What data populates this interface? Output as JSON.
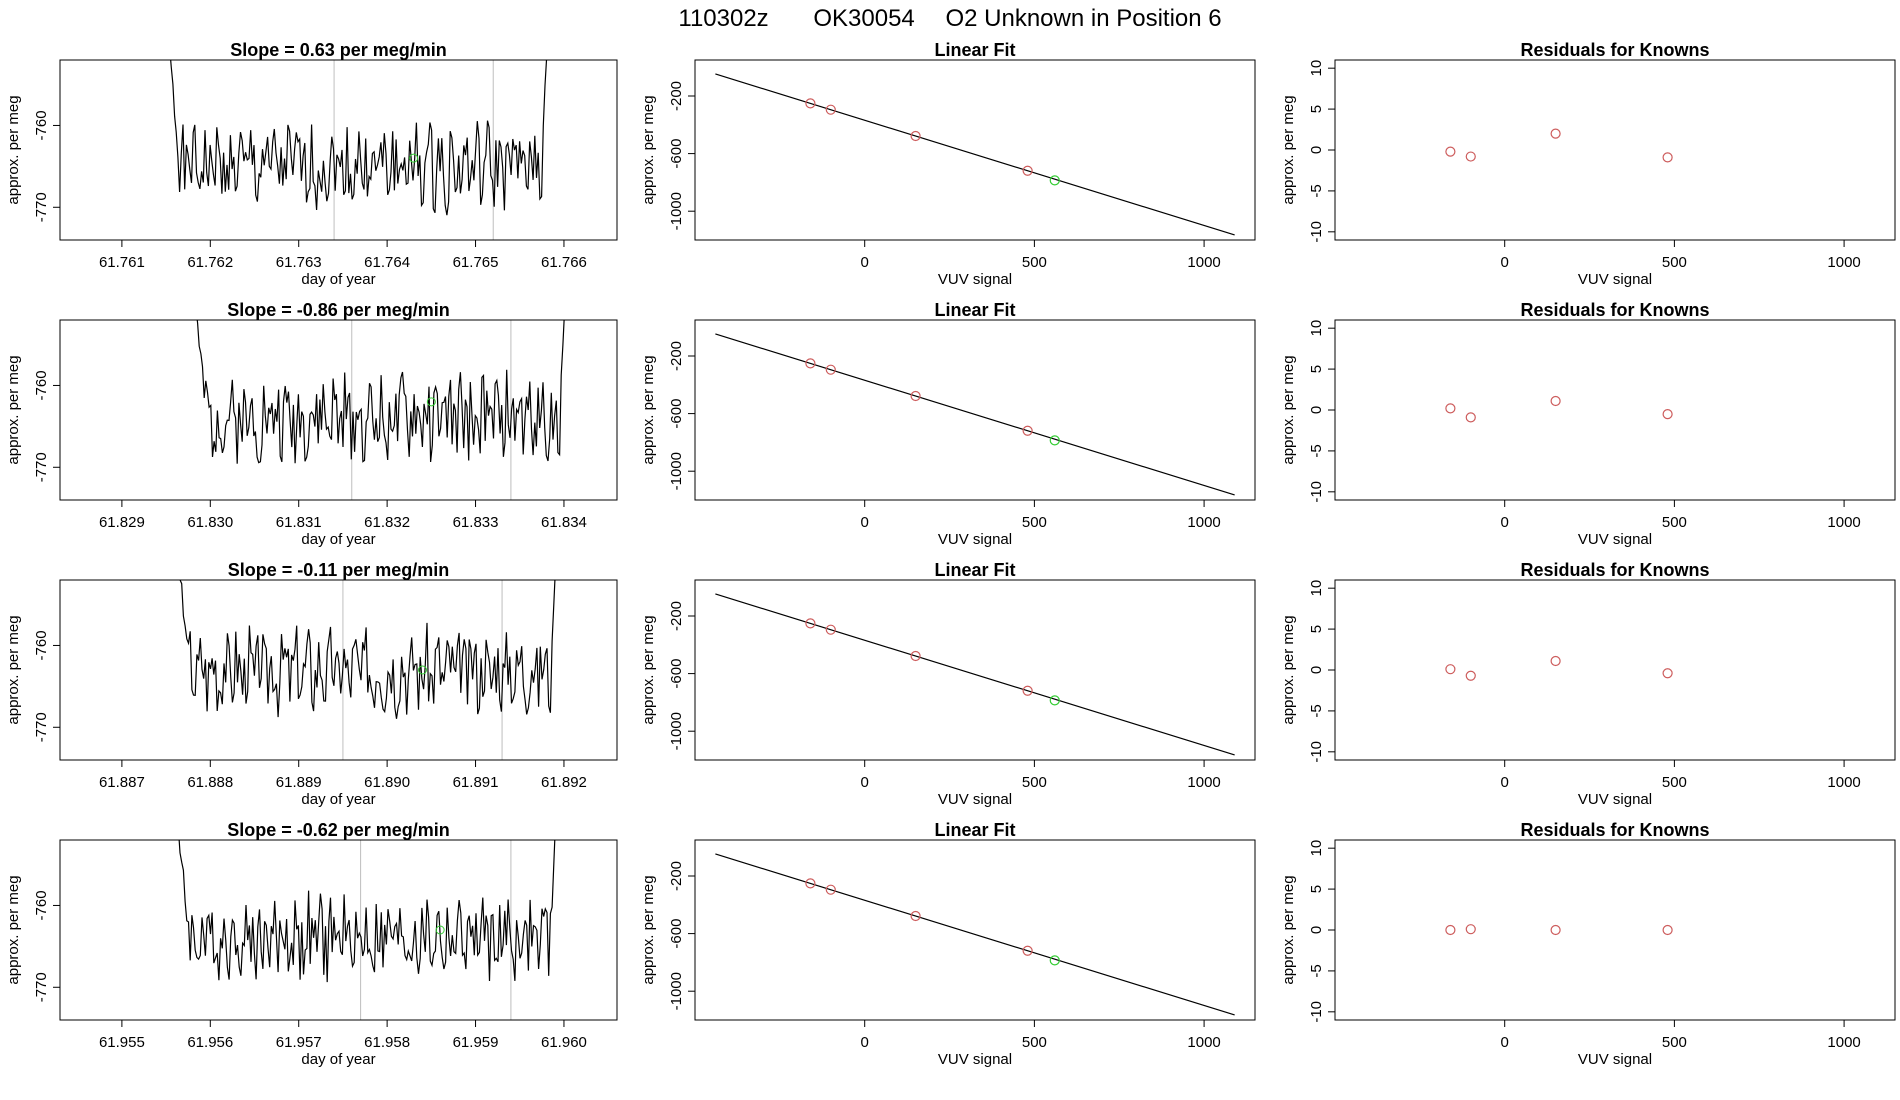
{
  "figure": {
    "id": "110302z",
    "instrument": "OK30054",
    "description": "O2 Unknown in Position  6"
  },
  "colors": {
    "line": "#000000",
    "known": "#cd5c5c",
    "unknown": "#32cd32",
    "vline": "#bebebe"
  },
  "chart_data": [
    {
      "type": "line",
      "title": "Slope =  0.63  per meg/min",
      "xlabel": "day of year",
      "ylabel": "approx. per meg",
      "xlim": [
        61.7603,
        61.7666
      ],
      "ylim": [
        -774,
        -752
      ],
      "xticks": [
        "61.761",
        "61.762",
        "61.763",
        "61.764",
        "61.765",
        "61.766"
      ],
      "yticks": [
        "-760",
        "-770"
      ],
      "vlines": [
        61.7634,
        61.7652
      ],
      "unknown_point": {
        "x": 61.7643,
        "y": -764
      },
      "series_range": [
        61.7615,
        61.7659
      ],
      "center": -765,
      "noise_seed": 1
    },
    {
      "type": "scatter",
      "title": "Linear Fit",
      "xlabel": "VUV signal",
      "ylabel": "approx. per meg",
      "xlim": [
        -500,
        1150
      ],
      "ylim": [
        -1200,
        50
      ],
      "xticks": [
        "0",
        "500",
        "1000"
      ],
      "yticks": [
        "-200",
        "-600",
        "-1000"
      ],
      "line": {
        "x1": -440,
        "y1": -47,
        "x2": 1090,
        "y2": -1165
      },
      "knowns": [
        {
          "x": -160,
          "y": -251
        },
        {
          "x": -100,
          "y": -295
        },
        {
          "x": 150,
          "y": -478
        },
        {
          "x": 480,
          "y": -719
        }
      ],
      "unknown": {
        "x": 560,
        "y": -786
      }
    },
    {
      "type": "scatter",
      "title": "Residuals for Knowns",
      "xlabel": "VUV signal",
      "ylabel": "approx. per meg",
      "xlim": [
        -500,
        1150
      ],
      "ylim": [
        -11,
        11
      ],
      "xticks": [
        "0",
        "500",
        "1000"
      ],
      "yticks": [
        "10",
        "5",
        "0",
        "-5",
        "-10"
      ],
      "knowns": [
        {
          "x": -160,
          "y": -0.2
        },
        {
          "x": -100,
          "y": -0.8
        },
        {
          "x": 150,
          "y": 2.0
        },
        {
          "x": 480,
          "y": -0.9
        }
      ]
    },
    {
      "type": "line",
      "title": "Slope =  -0.86  per meg/min",
      "xlabel": "day of year",
      "ylabel": "approx. per meg",
      "xlim": [
        61.8283,
        61.8346
      ],
      "ylim": [
        -774,
        -752
      ],
      "xticks": [
        "61.829",
        "61.830",
        "61.831",
        "61.832",
        "61.833",
        "61.834"
      ],
      "yticks": [
        "-760",
        "-770"
      ],
      "vlines": [
        61.8316,
        61.8334
      ],
      "unknown_point": {
        "x": 61.8325,
        "y": -762
      },
      "series_range": [
        61.8298,
        61.8341
      ],
      "center": -764,
      "noise_seed": 2
    },
    {
      "type": "scatter",
      "title": "Linear Fit",
      "xlabel": "VUV signal",
      "ylabel": "approx. per meg",
      "xlim": [
        -500,
        1150
      ],
      "ylim": [
        -1200,
        50
      ],
      "xticks": [
        "0",
        "500",
        "1000"
      ],
      "yticks": [
        "-200",
        "-600",
        "-1000"
      ],
      "line": {
        "x1": -440,
        "y1": -47,
        "x2": 1090,
        "y2": -1165
      },
      "knowns": [
        {
          "x": -160,
          "y": -251
        },
        {
          "x": -100,
          "y": -295
        },
        {
          "x": 150,
          "y": -478
        },
        {
          "x": 480,
          "y": -719
        }
      ],
      "unknown": {
        "x": 560,
        "y": -786
      }
    },
    {
      "type": "scatter",
      "title": "Residuals for Knowns",
      "xlabel": "VUV signal",
      "ylabel": "approx. per meg",
      "xlim": [
        -500,
        1150
      ],
      "ylim": [
        -11,
        11
      ],
      "xticks": [
        "0",
        "500",
        "1000"
      ],
      "yticks": [
        "10",
        "5",
        "0",
        "-5",
        "-10"
      ],
      "knowns": [
        {
          "x": -160,
          "y": 0.2
        },
        {
          "x": -100,
          "y": -0.9
        },
        {
          "x": 150,
          "y": 1.1
        },
        {
          "x": 480,
          "y": -0.5
        }
      ]
    },
    {
      "type": "line",
      "title": "Slope =  -0.11  per meg/min",
      "xlabel": "day of year",
      "ylabel": "approx. per meg",
      "xlim": [
        61.8863,
        61.8926
      ],
      "ylim": [
        -774,
        -752
      ],
      "xticks": [
        "61.887",
        "61.888",
        "61.889",
        "61.890",
        "61.891",
        "61.892"
      ],
      "yticks": [
        "-760",
        "-770"
      ],
      "vlines": [
        61.8895,
        61.8913
      ],
      "unknown_point": {
        "x": 61.8904,
        "y": -763
      },
      "series_range": [
        61.8876,
        61.892
      ],
      "center": -763,
      "noise_seed": 3
    },
    {
      "type": "scatter",
      "title": "Linear Fit",
      "xlabel": "VUV signal",
      "ylabel": "approx. per meg",
      "xlim": [
        -500,
        1150
      ],
      "ylim": [
        -1200,
        50
      ],
      "xticks": [
        "0",
        "500",
        "1000"
      ],
      "yticks": [
        "-200",
        "-600",
        "-1000"
      ],
      "line": {
        "x1": -440,
        "y1": -47,
        "x2": 1090,
        "y2": -1165
      },
      "knowns": [
        {
          "x": -160,
          "y": -251
        },
        {
          "x": -100,
          "y": -295
        },
        {
          "x": 150,
          "y": -478
        },
        {
          "x": 480,
          "y": -719
        }
      ],
      "unknown": {
        "x": 560,
        "y": -786
      }
    },
    {
      "type": "scatter",
      "title": "Residuals for Knowns",
      "xlabel": "VUV signal",
      "ylabel": "approx. per meg",
      "xlim": [
        -500,
        1150
      ],
      "ylim": [
        -11,
        11
      ],
      "xticks": [
        "0",
        "500",
        "1000"
      ],
      "yticks": [
        "10",
        "5",
        "0",
        "-5",
        "-10"
      ],
      "knowns": [
        {
          "x": -160,
          "y": 0.1
        },
        {
          "x": -100,
          "y": -0.7
        },
        {
          "x": 150,
          "y": 1.1
        },
        {
          "x": 480,
          "y": -0.4
        }
      ]
    },
    {
      "type": "line",
      "title": "Slope =  -0.62  per meg/min",
      "xlabel": "day of year",
      "ylabel": "approx. per meg",
      "xlim": [
        61.9543,
        61.9606
      ],
      "ylim": [
        -774,
        -752
      ],
      "xticks": [
        "61.955",
        "61.956",
        "61.957",
        "61.958",
        "61.959",
        "61.960"
      ],
      "yticks": [
        "-760",
        "-770"
      ],
      "vlines": [
        61.9577,
        61.9594
      ],
      "unknown_point": {
        "x": 61.9586,
        "y": -763
      },
      "series_range": [
        61.9556,
        61.96
      ],
      "center": -764,
      "noise_seed": 4
    },
    {
      "type": "scatter",
      "title": "Linear Fit",
      "xlabel": "VUV signal",
      "ylabel": "approx. per meg",
      "xlim": [
        -500,
        1150
      ],
      "ylim": [
        -1200,
        50
      ],
      "xticks": [
        "0",
        "500",
        "1000"
      ],
      "yticks": [
        "-200",
        "-600",
        "-1000"
      ],
      "line": {
        "x1": -440,
        "y1": -47,
        "x2": 1090,
        "y2": -1165
      },
      "knowns": [
        {
          "x": -160,
          "y": -251
        },
        {
          "x": -100,
          "y": -295
        },
        {
          "x": 150,
          "y": -478
        },
        {
          "x": 480,
          "y": -719
        }
      ],
      "unknown": {
        "x": 560,
        "y": -786
      }
    },
    {
      "type": "scatter",
      "title": "Residuals for Knowns",
      "xlabel": "VUV signal",
      "ylabel": "approx. per meg",
      "xlim": [
        -500,
        1150
      ],
      "ylim": [
        -11,
        11
      ],
      "xticks": [
        "0",
        "500",
        "1000"
      ],
      "yticks": [
        "10",
        "5",
        "0",
        "-5",
        "-10"
      ],
      "knowns": [
        {
          "x": -160,
          "y": 0.0
        },
        {
          "x": -100,
          "y": 0.1
        },
        {
          "x": 150,
          "y": 0.0
        },
        {
          "x": 480,
          "y": 0.0
        }
      ]
    }
  ]
}
